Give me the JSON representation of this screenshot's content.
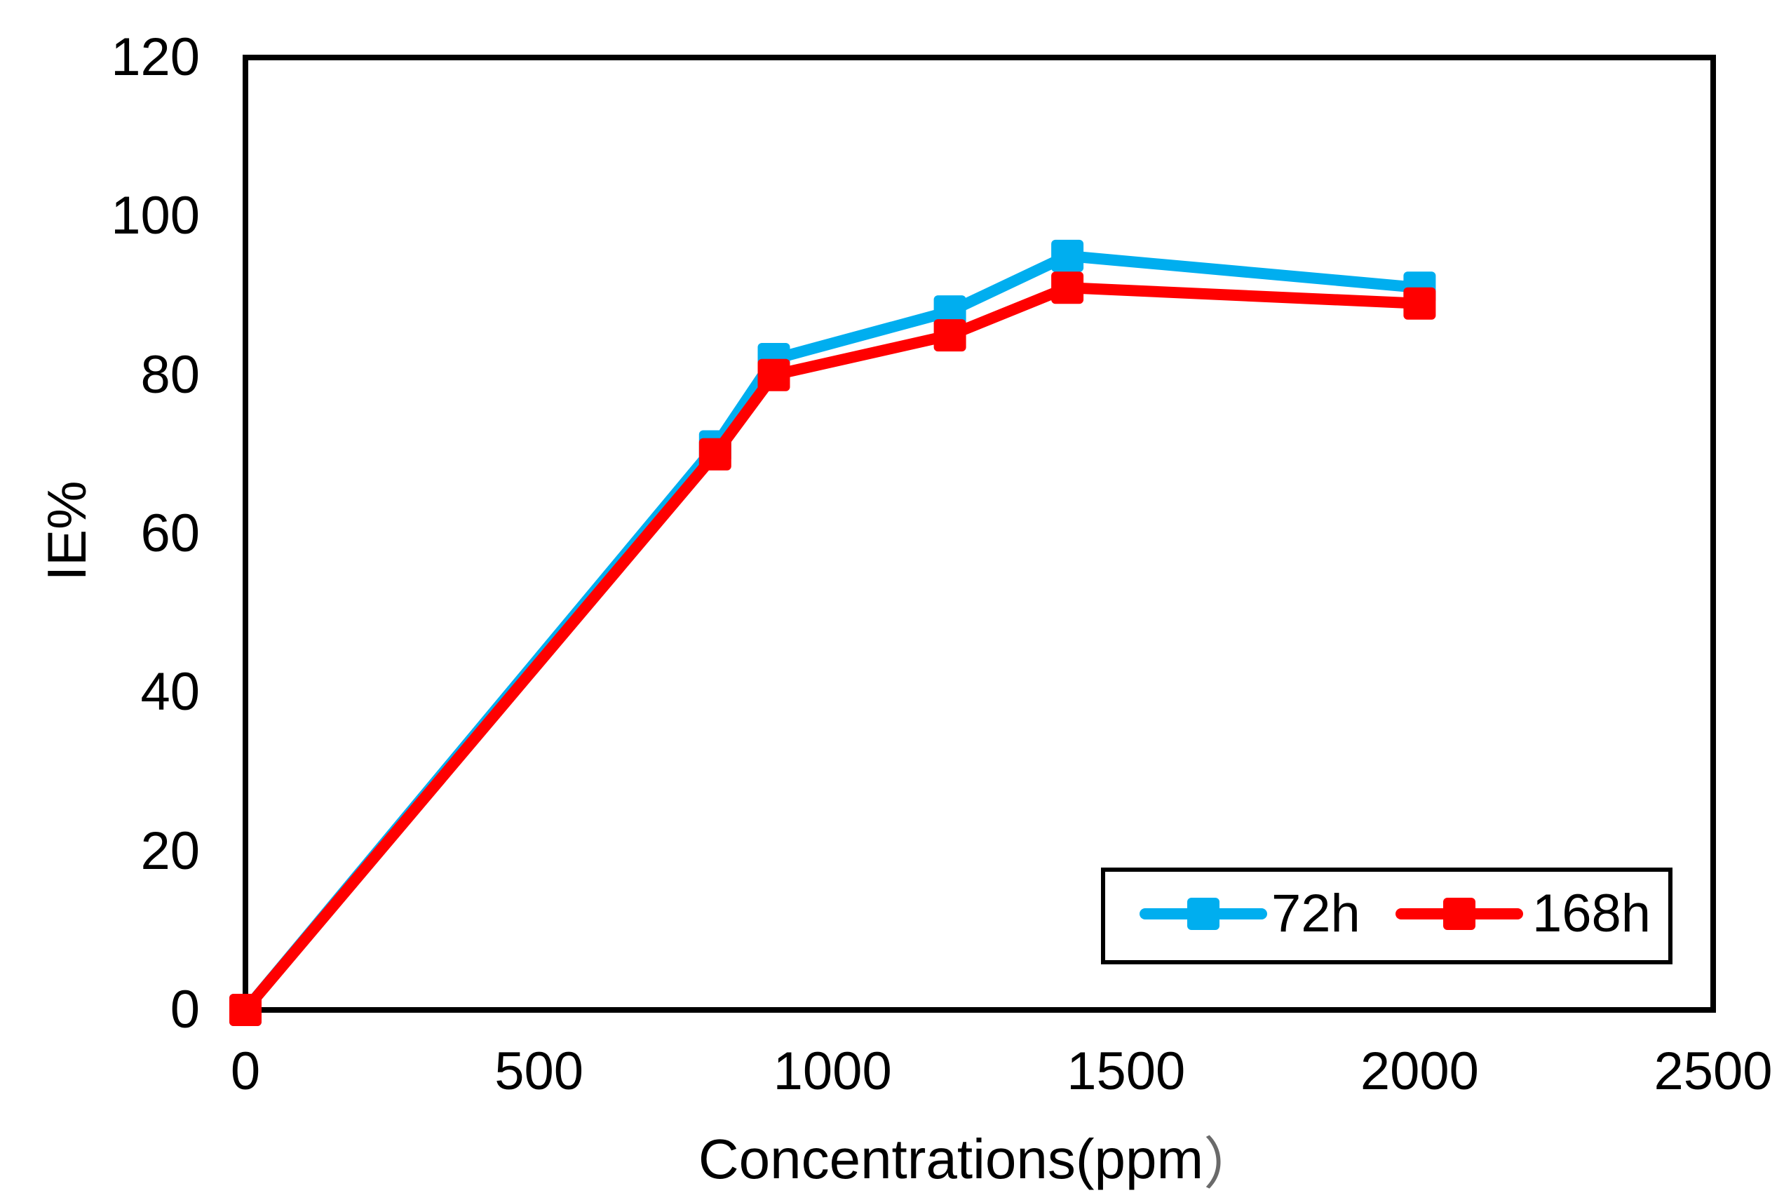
{
  "chart_data": {
    "type": "line",
    "title": "",
    "ylabel": "IE%",
    "xlabel_main": "Concentrations(ppm",
    "xlabel_close_paren": "）",
    "paren_color": "#6a6a6a",
    "axis_color": "#000000",
    "background_color": "#ffffff",
    "grid": false,
    "marker": "square",
    "xlim": [
      0,
      2500
    ],
    "ylim": [
      0,
      120
    ],
    "x_ticks": [
      0,
      500,
      1000,
      1500,
      2000,
      2500
    ],
    "y_ticks": [
      0,
      20,
      40,
      60,
      80,
      100,
      120
    ],
    "x": [
      0,
      800,
      900,
      1200,
      1400,
      2000
    ],
    "series": [
      {
        "name": "72h",
        "color": "#00AEEF",
        "values": [
          0,
          71,
          82,
          88,
          95,
          91
        ]
      },
      {
        "name": "168h",
        "color": "#FF0000",
        "values": [
          0,
          70,
          80,
          85,
          91,
          89
        ]
      }
    ],
    "legend": {
      "position": "inside-bottom-right",
      "entries": [
        "72h",
        "168h"
      ]
    }
  }
}
